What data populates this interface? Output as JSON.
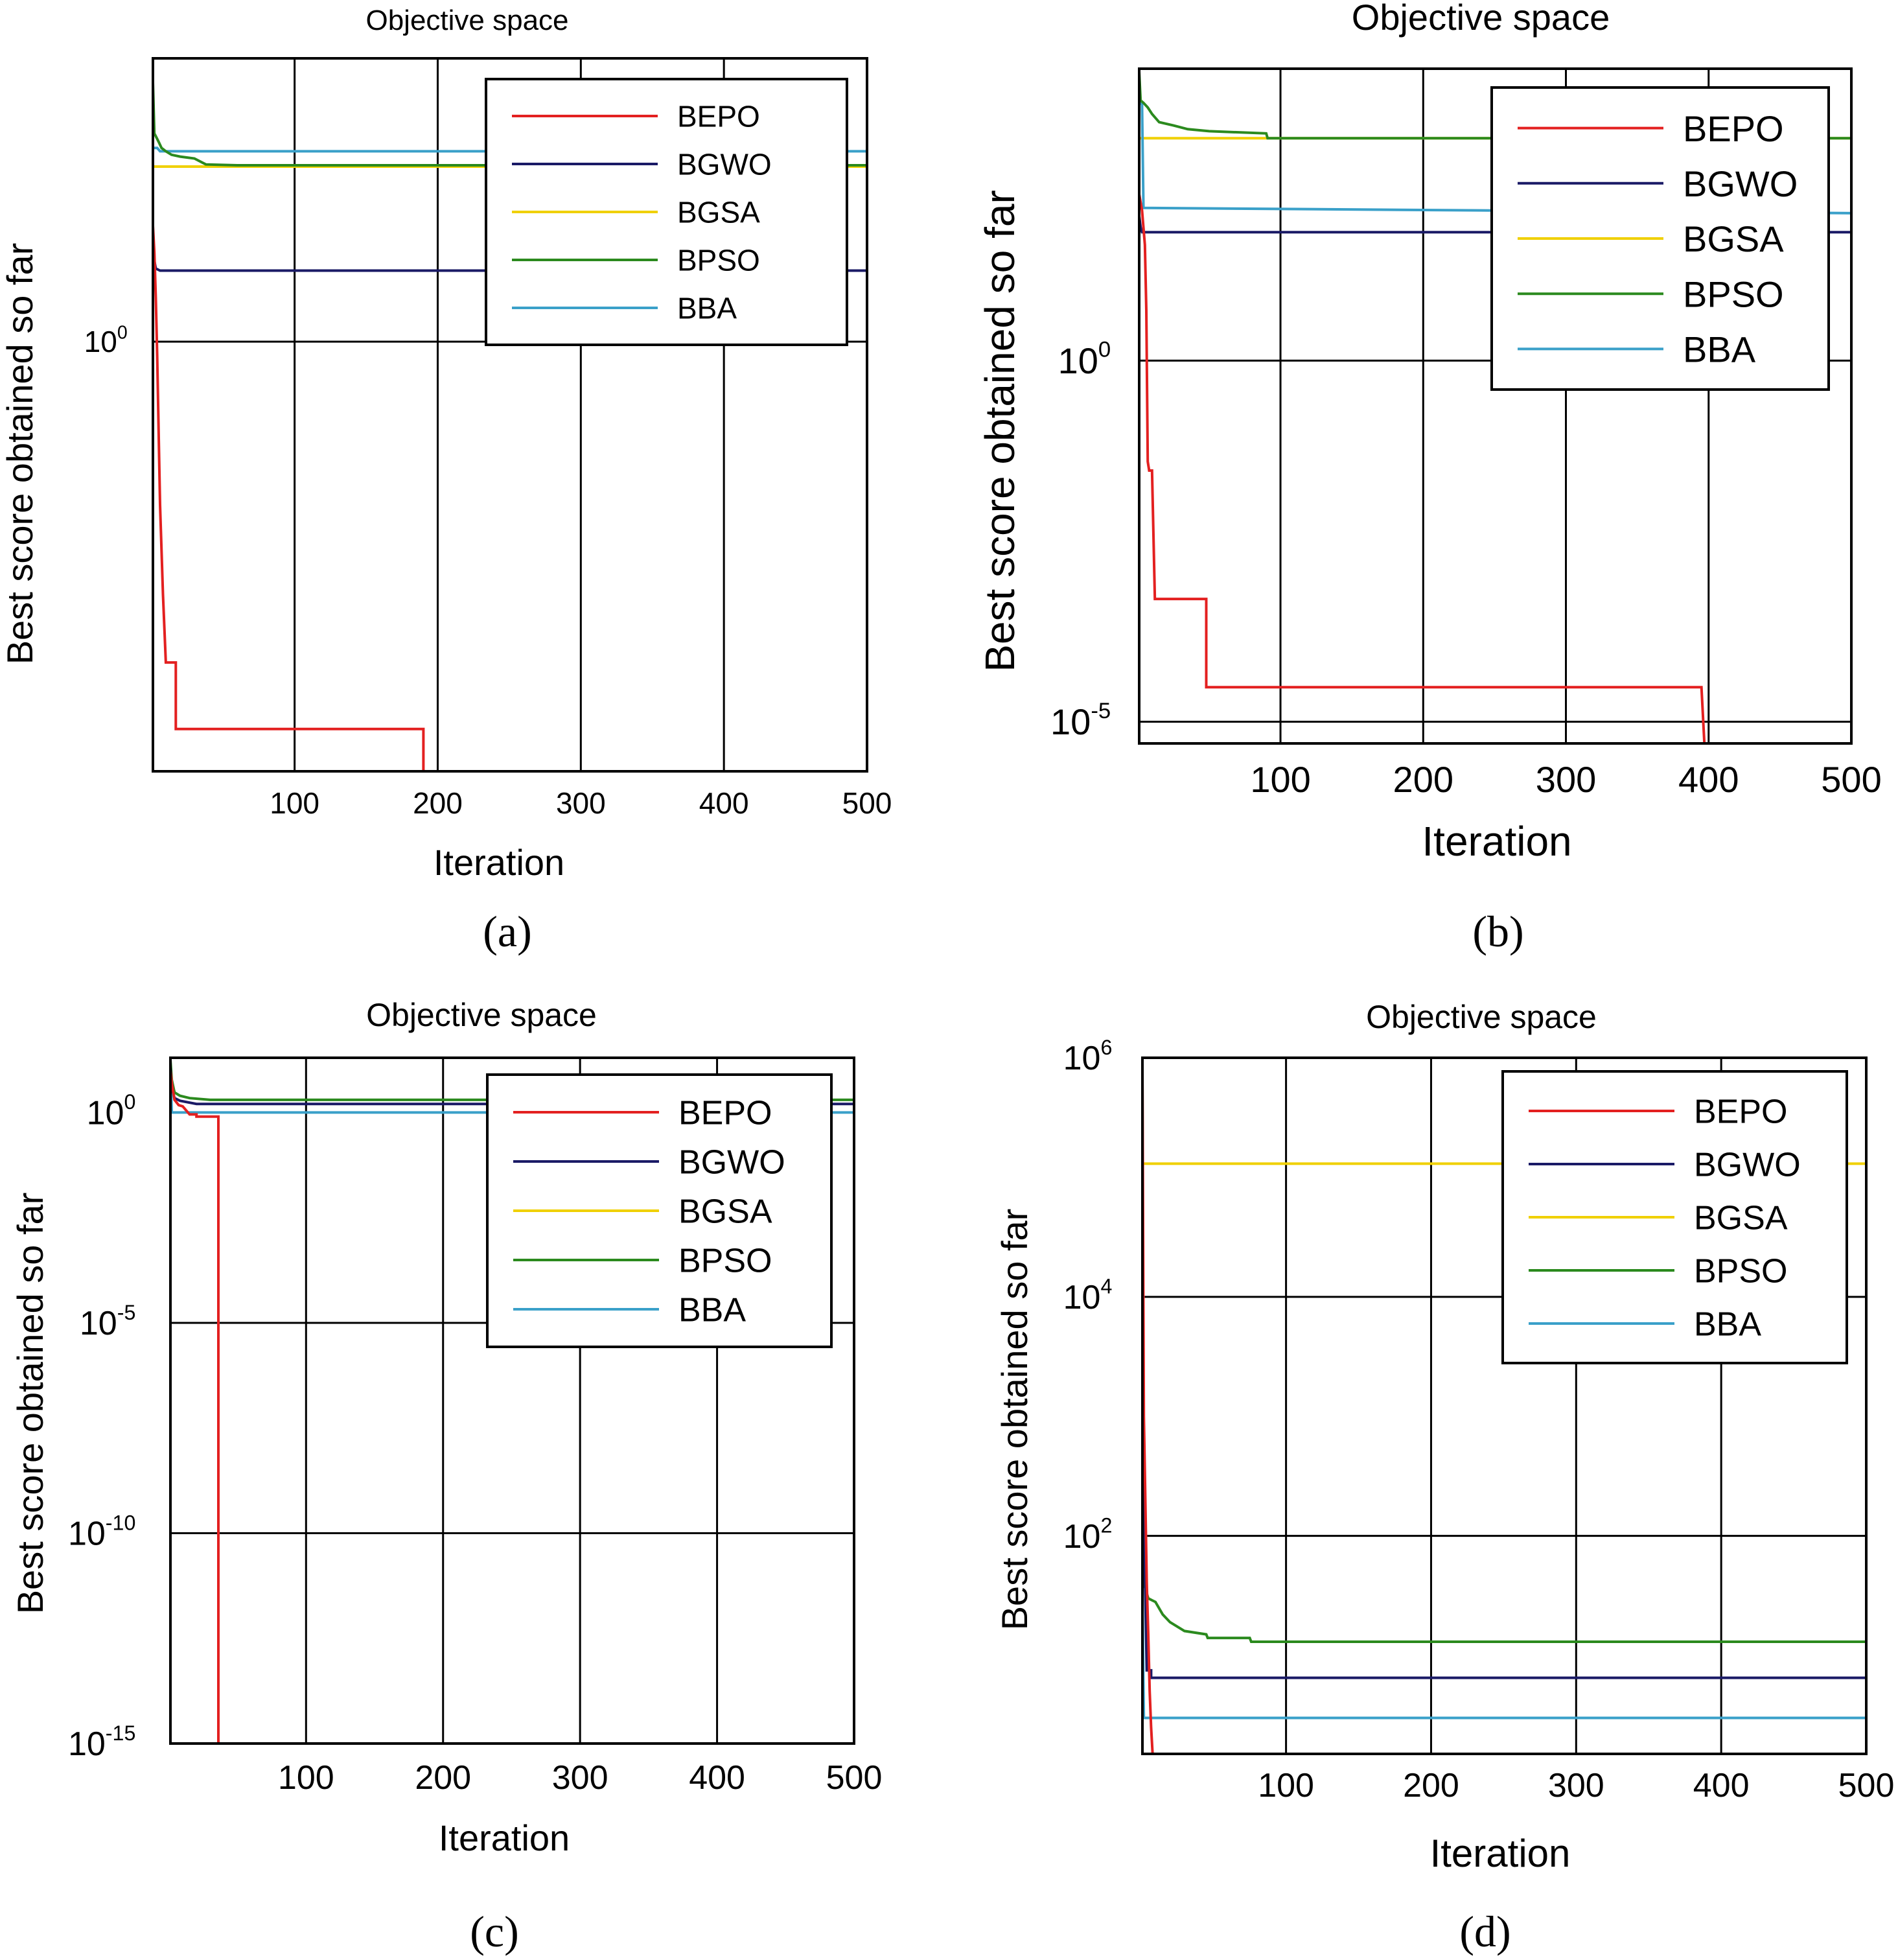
{
  "figure": {
    "panels": [
      {
        "id": "a",
        "caption": "(a)"
      },
      {
        "id": "b",
        "caption": "(b)"
      },
      {
        "id": "c",
        "caption": "(c)"
      },
      {
        "id": "d",
        "caption": "(d)"
      }
    ]
  },
  "chart_data": [
    {
      "type": "line",
      "panel": "(a)",
      "title": "Objective space",
      "xlabel": "Iteration",
      "ylabel": "Best score obtained so far",
      "yscale": "log",
      "xlim": [
        1,
        500
      ],
      "ylim": [
        0.0013,
        80
      ],
      "x_ticks": [
        100,
        200,
        300,
        400,
        500
      ],
      "y_ticks": [
        {
          "value": 1,
          "base": "10",
          "exp": "0"
        }
      ],
      "grid": true,
      "legend": {
        "position": "top-right",
        "entries": [
          "BEPO",
          "BGWO",
          "BGSA",
          "BPSO",
          "BBA"
        ]
      },
      "series": [
        {
          "name": "BEPO",
          "color": "#e32020",
          "points": [
            [
              1,
              6
            ],
            [
              2,
              4
            ],
            [
              3,
              2
            ],
            [
              4,
              0.8
            ],
            [
              5,
              0.25
            ],
            [
              6,
              0.08
            ],
            [
              8,
              0.02
            ],
            [
              10,
              0.007
            ],
            [
              17,
              0.007
            ],
            [
              17,
              0.0025
            ],
            [
              18,
              0.0025
            ],
            [
              190,
              0.0025
            ],
            [
              190,
              0.0013
            ],
            [
              500,
              0.0013
            ]
          ]
        },
        {
          "name": "BGWO",
          "color": "#1a1a66",
          "points": [
            [
              1,
              5
            ],
            [
              2,
              3.5
            ],
            [
              3,
              3.1
            ],
            [
              6,
              3.0
            ],
            [
              500,
              3.0
            ]
          ]
        },
        {
          "name": "BGSA",
          "color": "#f0d000",
          "points": [
            [
              1,
              15
            ],
            [
              500,
              15
            ]
          ]
        },
        {
          "name": "BPSO",
          "color": "#2b8a1e",
          "points": [
            [
              1,
              55
            ],
            [
              2,
              25
            ],
            [
              3,
              24
            ],
            [
              5,
              22
            ],
            [
              7,
              20
            ],
            [
              10,
              19
            ],
            [
              14,
              18
            ],
            [
              20,
              17.5
            ],
            [
              30,
              17
            ],
            [
              38,
              15.5
            ],
            [
              60,
              15.3
            ],
            [
              500,
              15.3
            ]
          ]
        },
        {
          "name": "BBA",
          "color": "#3aa0c9",
          "points": [
            [
              1,
              20
            ],
            [
              4,
              20
            ],
            [
              6,
              19
            ],
            [
              500,
              19
            ]
          ]
        }
      ]
    },
    {
      "type": "line",
      "panel": "(b)",
      "title": "Objective space",
      "xlabel": "Iteration",
      "ylabel": "Best score obtained so far",
      "yscale": "log",
      "xlim": [
        1,
        500
      ],
      "ylim": [
        5e-06,
        11000
      ],
      "x_ticks": [
        100,
        200,
        300,
        400,
        500
      ],
      "y_ticks": [
        {
          "value": 1,
          "base": "10",
          "exp": "0"
        },
        {
          "value": 1e-05,
          "base": "10",
          "exp": "-5"
        }
      ],
      "grid": true,
      "legend": {
        "position": "top-right",
        "entries": [
          "BEPO",
          "BGWO",
          "BGSA",
          "BPSO",
          "BBA"
        ]
      },
      "series": [
        {
          "name": "BEPO",
          "color": "#e32020",
          "points": [
            [
              1,
              200
            ],
            [
              3,
              120
            ],
            [
              5,
              40
            ],
            [
              6,
              5
            ],
            [
              7,
              0.04
            ],
            [
              8,
              0.03
            ],
            [
              10,
              0.03
            ],
            [
              12,
              0.0005
            ],
            [
              48,
              0.0005
            ],
            [
              48,
              3e-05
            ],
            [
              395,
              3e-05
            ],
            [
              397,
              5e-06
            ]
          ]
        },
        {
          "name": "BGWO",
          "color": "#1a1a66",
          "points": [
            [
              1,
              100
            ],
            [
              2,
              70
            ],
            [
              3,
              60
            ],
            [
              500,
              60
            ]
          ]
        },
        {
          "name": "BGSA",
          "color": "#f0d000",
          "points": [
            [
              1,
              1200
            ],
            [
              500,
              1200
            ]
          ]
        },
        {
          "name": "BPSO",
          "color": "#2b8a1e",
          "points": [
            [
              1,
              10000
            ],
            [
              2,
              4000
            ],
            [
              4,
              3700
            ],
            [
              7,
              3200
            ],
            [
              10,
              2600
            ],
            [
              15,
              2000
            ],
            [
              25,
              1800
            ],
            [
              35,
              1600
            ],
            [
              50,
              1500
            ],
            [
              90,
              1400
            ],
            [
              91,
              1200
            ],
            [
              500,
              1200
            ]
          ]
        },
        {
          "name": "BBA",
          "color": "#3aa0c9",
          "points": [
            [
              1,
              4000
            ],
            [
              3,
              3500
            ],
            [
              4,
              130
            ],
            [
              500,
              110
            ]
          ]
        }
      ]
    },
    {
      "type": "line",
      "panel": "(c)",
      "title": "Objective space",
      "xlabel": "Iteration",
      "ylabel": "Best score obtained so far",
      "yscale": "log",
      "xlim": [
        1,
        500
      ],
      "ylim": [
        1e-15,
        20
      ],
      "x_ticks": [
        100,
        200,
        300,
        400,
        500
      ],
      "y_ticks": [
        {
          "value": 1,
          "base": "10",
          "exp": "0"
        },
        {
          "value": 1e-05,
          "base": "10",
          "exp": "-5"
        },
        {
          "value": 1e-10,
          "base": "10",
          "exp": "-10"
        },
        {
          "value": 1e-15,
          "base": "10",
          "exp": "-15"
        }
      ],
      "grid": true,
      "legend": {
        "position": "top-right",
        "entries": [
          "BEPO",
          "BGWO",
          "BGSA",
          "BPSO",
          "BBA"
        ]
      },
      "series": [
        {
          "name": "BEPO",
          "color": "#e32020",
          "points": [
            [
              1,
              10
            ],
            [
              2,
              5
            ],
            [
              4,
              2
            ],
            [
              7,
              1.5
            ],
            [
              10,
              1.4
            ],
            [
              15,
              0.9
            ],
            [
              20,
              0.9
            ],
            [
              20,
              0.8
            ],
            [
              36,
              0.8
            ],
            [
              36,
              1e-15
            ],
            [
              500,
              1e-15
            ]
          ]
        },
        {
          "name": "BGWO",
          "color": "#1a1a66",
          "points": [
            [
              1,
              12
            ],
            [
              2,
              4
            ],
            [
              4,
              2.2
            ],
            [
              8,
              1.9
            ],
            [
              20,
              1.6
            ],
            [
              500,
              1.6
            ]
          ]
        },
        {
          "name": "BGSA",
          "color": "#f0d000",
          "points": [
            [
              1,
              20
            ],
            [
              500,
              20
            ]
          ]
        },
        {
          "name": "BPSO",
          "color": "#2b8a1e",
          "points": [
            [
              1,
              18
            ],
            [
              2,
              6
            ],
            [
              4,
              3
            ],
            [
              8,
              2.5
            ],
            [
              15,
              2.2
            ],
            [
              30,
              2.0
            ],
            [
              500,
              2.0
            ]
          ]
        },
        {
          "name": "BBA",
          "color": "#3aa0c9",
          "points": [
            [
              1,
              15
            ],
            [
              2,
              1.0
            ],
            [
              500,
              1.0
            ]
          ]
        }
      ]
    },
    {
      "type": "line",
      "panel": "(d)",
      "title": "Objective space",
      "xlabel": "Iteration",
      "ylabel": "Best score obtained so far",
      "yscale": "log",
      "xlim": [
        1,
        500
      ],
      "ylim": [
        1.5,
        1000000
      ],
      "x_ticks": [
        100,
        200,
        300,
        400,
        500
      ],
      "y_ticks": [
        {
          "value": 1000000,
          "base": "10",
          "exp": "6"
        },
        {
          "value": 10000,
          "base": "10",
          "exp": "4"
        },
        {
          "value": 100,
          "base": "10",
          "exp": "2"
        }
      ],
      "grid": true,
      "legend": {
        "position": "top-right",
        "entries": [
          "BEPO",
          "BGWO",
          "BGSA",
          "BPSO",
          "BBA"
        ]
      },
      "series": [
        {
          "name": "BEPO",
          "color": "#e32020",
          "points": [
            [
              1,
              900000
            ],
            [
              2,
              1000
            ],
            [
              3,
              200
            ],
            [
              4,
              40
            ],
            [
              5,
              15
            ],
            [
              6,
              5
            ],
            [
              7,
              2.5
            ],
            [
              8,
              1.5
            ]
          ]
        },
        {
          "name": "BGWO",
          "color": "#1a1a66",
          "points": [
            [
              1,
              1000
            ],
            [
              3,
              30
            ],
            [
              4,
              7.5
            ],
            [
              7,
              7.5
            ],
            [
              7,
              6.5
            ],
            [
              500,
              6.5
            ]
          ]
        },
        {
          "name": "BGSA",
          "color": "#f0d000",
          "points": [
            [
              1,
              130000
            ],
            [
              500,
              130000
            ]
          ]
        },
        {
          "name": "BPSO",
          "color": "#2b8a1e",
          "points": [
            [
              1,
              600000
            ],
            [
              2,
              40
            ],
            [
              5,
              30
            ],
            [
              10,
              28
            ],
            [
              15,
              22
            ],
            [
              20,
              19
            ],
            [
              30,
              16
            ],
            [
              45,
              15
            ],
            [
              46,
              14
            ],
            [
              75,
              14
            ],
            [
              76,
              13
            ],
            [
              500,
              13
            ]
          ]
        },
        {
          "name": "BBA",
          "color": "#3aa0c9",
          "points": [
            [
              1,
              30
            ],
            [
              2,
              3
            ],
            [
              500,
              3
            ]
          ]
        }
      ]
    }
  ]
}
